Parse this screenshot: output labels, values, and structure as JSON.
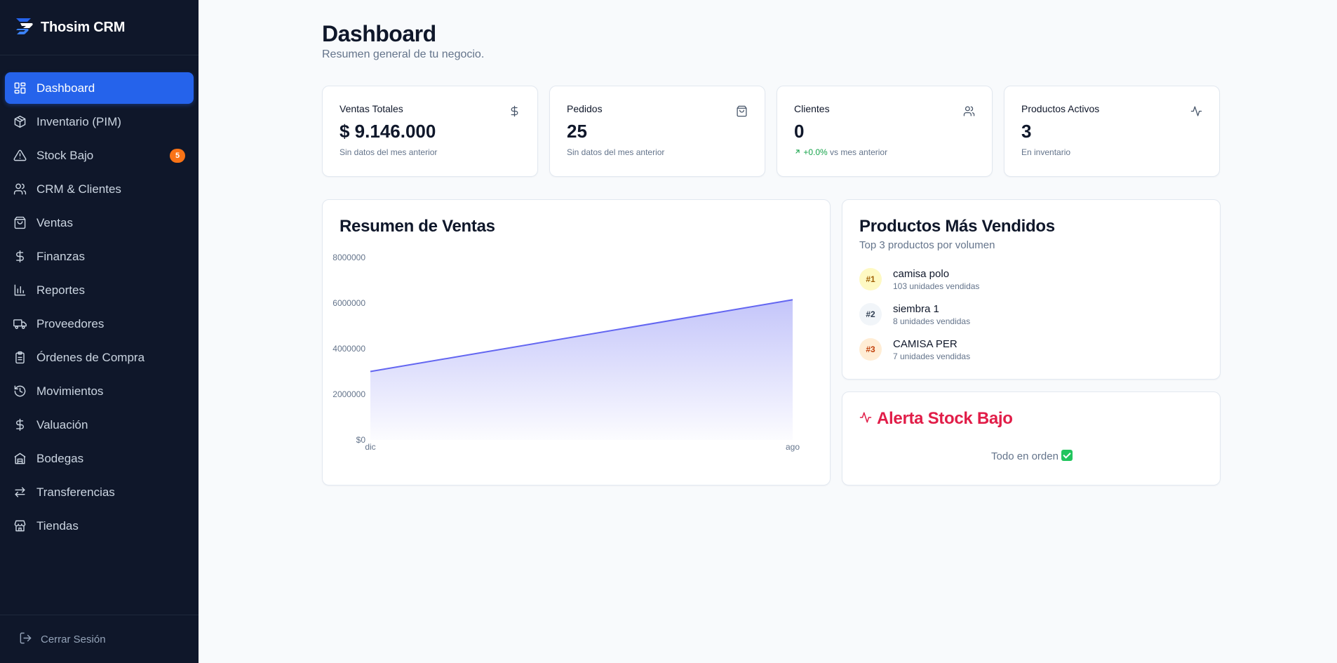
{
  "app": {
    "name": "Thosim CRM"
  },
  "sidebar": {
    "items": [
      {
        "label": "Dashboard",
        "icon": "dashboard-grid-icon",
        "active": true
      },
      {
        "label": "Inventario (PIM)",
        "icon": "package-icon"
      },
      {
        "label": "Stock Bajo",
        "icon": "warning-triangle-icon",
        "badge": "5"
      },
      {
        "label": "CRM & Clientes",
        "icon": "users-icon"
      },
      {
        "label": "Ventas",
        "icon": "shopping-bag-icon"
      },
      {
        "label": "Finanzas",
        "icon": "dollar-icon"
      },
      {
        "label": "Reportes",
        "icon": "bar-chart-icon"
      },
      {
        "label": "Proveedores",
        "icon": "truck-icon"
      },
      {
        "label": "Órdenes de Compra",
        "icon": "clipboard-icon"
      },
      {
        "label": "Movimientos",
        "icon": "history-icon"
      },
      {
        "label": "Valuación",
        "icon": "dollar-icon"
      },
      {
        "label": "Bodegas",
        "icon": "warehouse-icon"
      },
      {
        "label": "Transferencias",
        "icon": "transfer-arrows-icon"
      },
      {
        "label": "Tiendas",
        "icon": "store-icon"
      }
    ],
    "logout_label": "Cerrar Sesión"
  },
  "header": {
    "title": "Dashboard",
    "subtitle": "Resumen general de tu negocio."
  },
  "stats": [
    {
      "label": "Ventas Totales",
      "value": "$ 9.146.000",
      "note": "Sin datos del mes anterior",
      "icon": "dollar-icon"
    },
    {
      "label": "Pedidos",
      "value": "25",
      "note": "Sin datos del mes anterior",
      "icon": "shopping-bag-icon"
    },
    {
      "label": "Clientes",
      "value": "0",
      "change": "+0.0%",
      "note": "vs mes anterior",
      "icon": "users-icon"
    },
    {
      "label": "Productos Activos",
      "value": "3",
      "note": "En inventario",
      "icon": "activity-icon"
    }
  ],
  "sales_summary": {
    "title": "Resumen de Ventas"
  },
  "chart_data": {
    "type": "area",
    "title": "Resumen de Ventas",
    "x": [
      "dic",
      "ago"
    ],
    "y_tick_labels": [
      "$0",
      "2000000",
      "4000000",
      "6000000",
      "8000000"
    ],
    "y_ticks": [
      0,
      2000000,
      4000000,
      6000000,
      8000000
    ],
    "series": [
      {
        "values": [
          3000000,
          6146000
        ]
      }
    ],
    "ylim": [
      0,
      8000000
    ],
    "grid": false,
    "color": "#6366f1"
  },
  "top_products": {
    "title": "Productos Más Vendidos",
    "subtitle": "Top 3 productos por volumen",
    "items": [
      {
        "rank": "#1",
        "name": "camisa polo",
        "units": "103 unidades vendidas"
      },
      {
        "rank": "#2",
        "name": "siembra 1",
        "units": "8 unidades vendidas"
      },
      {
        "rank": "#3",
        "name": "CAMISA PER",
        "units": "7 unidades vendidas"
      }
    ]
  },
  "stock_alert": {
    "title": "Alerta Stock Bajo",
    "message": "Todo en orden"
  },
  "colors": {
    "sidebar_bg": "#0f172a",
    "accent": "#2563eb",
    "badge": "#f97316",
    "alert": "#e11d48",
    "positive": "#16a34a",
    "chart_line": "#6366f1",
    "rank1_bg": "#fef9c3",
    "rank2_bg": "#f1f5f9",
    "rank3_bg": "#ffedd5"
  }
}
